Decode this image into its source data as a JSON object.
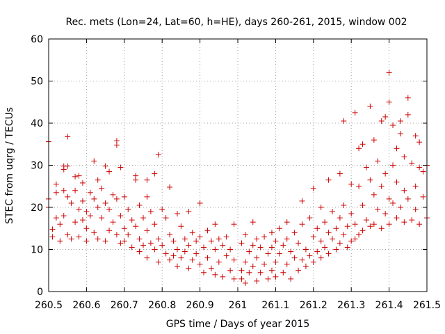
{
  "colors": {
    "series": "#cc0000",
    "grid": "#a0a0a0",
    "frame": "#000000"
  },
  "chart_data": {
    "type": "scatter",
    "title": "Rec. mets (Lon=24, Lat=60, h=HE), days 260-261, 2015, window 002",
    "xlabel": "GPS time / Days of year 2015",
    "ylabel": "STEC from uqrg / TECUs",
    "xlim": [
      260.5,
      261.5
    ],
    "ylim": [
      0,
      60
    ],
    "xticks": [
      "260.5",
      "260.6",
      "260.7",
      "260.8",
      "260.9",
      "261",
      "261.1",
      "261.2",
      "261.3",
      "261.4",
      "261.5"
    ],
    "xtick_values": [
      260.5,
      260.6,
      260.7,
      260.8,
      260.9,
      261.0,
      261.1,
      261.2,
      261.3,
      261.4,
      261.5
    ],
    "yticks": [
      "0",
      "10",
      "20",
      "30",
      "40",
      "50",
      "60"
    ],
    "ytick_values": [
      0,
      10,
      20,
      30,
      40,
      50,
      60
    ],
    "grid": true,
    "marker": "+",
    "series": [
      {
        "points": [
          [
            260.5,
            35.6
          ],
          [
            260.5,
            22.0
          ],
          [
            260.5,
            20.0
          ],
          [
            260.51,
            14.8
          ],
          [
            260.51,
            13.0
          ],
          [
            260.52,
            25.5
          ],
          [
            260.52,
            23.5
          ],
          [
            260.52,
            17.5
          ],
          [
            260.53,
            16.0
          ],
          [
            260.53,
            12.0
          ],
          [
            260.54,
            29.8
          ],
          [
            260.54,
            29.0
          ],
          [
            260.54,
            24.0
          ],
          [
            260.54,
            18.0
          ],
          [
            260.55,
            36.8
          ],
          [
            260.55,
            29.8
          ],
          [
            260.55,
            22.5
          ],
          [
            260.55,
            13.5
          ],
          [
            260.56,
            21.0
          ],
          [
            260.56,
            12.5
          ],
          [
            260.57,
            27.3
          ],
          [
            260.57,
            24.0
          ],
          [
            260.57,
            16.5
          ],
          [
            260.58,
            27.5
          ],
          [
            260.58,
            19.5
          ],
          [
            260.58,
            13.0
          ],
          [
            260.59,
            25.8
          ],
          [
            260.59,
            21.5
          ],
          [
            260.59,
            17.0
          ],
          [
            260.6,
            19.0
          ],
          [
            260.6,
            15.0
          ],
          [
            260.6,
            12.0
          ],
          [
            260.61,
            23.5
          ],
          [
            260.61,
            18.0
          ],
          [
            260.62,
            31.0
          ],
          [
            260.62,
            22.0
          ],
          [
            260.62,
            14.0
          ],
          [
            260.63,
            26.5
          ],
          [
            260.63,
            20.0
          ],
          [
            260.63,
            12.5
          ],
          [
            260.64,
            24.5
          ],
          [
            260.64,
            17.5
          ],
          [
            260.65,
            29.8
          ],
          [
            260.65,
            21.0
          ],
          [
            260.65,
            12.0
          ],
          [
            260.66,
            28.5
          ],
          [
            260.66,
            19.5
          ],
          [
            260.66,
            14.5
          ],
          [
            260.67,
            23.0
          ],
          [
            260.67,
            16.5
          ],
          [
            260.68,
            35.8
          ],
          [
            260.68,
            34.8
          ],
          [
            260.68,
            22.0
          ],
          [
            260.68,
            13.5
          ],
          [
            260.69,
            29.5
          ],
          [
            260.69,
            18.0
          ],
          [
            260.69,
            11.5
          ],
          [
            260.7,
            22.5
          ],
          [
            260.7,
            15.0
          ],
          [
            260.7,
            12.0
          ],
          [
            260.71,
            19.5
          ],
          [
            260.71,
            13.5
          ],
          [
            260.72,
            17.0
          ],
          [
            260.72,
            10.5
          ],
          [
            260.73,
            27.5
          ],
          [
            260.73,
            26.5
          ],
          [
            260.73,
            15.5
          ],
          [
            260.74,
            20.5
          ],
          [
            260.74,
            12.5
          ],
          [
            260.74,
            9.5
          ],
          [
            260.75,
            17.5
          ],
          [
            260.75,
            11.0
          ],
          [
            260.76,
            26.5
          ],
          [
            260.76,
            22.5
          ],
          [
            260.76,
            14.5
          ],
          [
            260.76,
            8.0
          ],
          [
            260.77,
            19.0
          ],
          [
            260.77,
            11.5
          ],
          [
            260.78,
            28.0
          ],
          [
            260.78,
            16.0
          ],
          [
            260.78,
            10.0
          ],
          [
            260.79,
            32.5
          ],
          [
            260.79,
            12.5
          ],
          [
            260.79,
            7.0
          ],
          [
            260.8,
            19.5
          ],
          [
            260.8,
            11.0
          ],
          [
            260.81,
            17.5
          ],
          [
            260.81,
            9.0
          ],
          [
            260.82,
            24.8
          ],
          [
            260.82,
            13.5
          ],
          [
            260.82,
            7.5
          ],
          [
            260.83,
            12.0
          ],
          [
            260.83,
            8.5
          ],
          [
            260.84,
            18.5
          ],
          [
            260.84,
            10.0
          ],
          [
            260.84,
            6.0
          ],
          [
            260.85,
            15.5
          ],
          [
            260.85,
            8.0
          ],
          [
            260.86,
            12.5
          ],
          [
            260.86,
            9.5
          ],
          [
            260.87,
            19.0
          ],
          [
            260.87,
            11.0
          ],
          [
            260.87,
            5.5
          ],
          [
            260.88,
            14.0
          ],
          [
            260.88,
            7.5
          ],
          [
            260.89,
            12.0
          ],
          [
            260.89,
            9.0
          ],
          [
            260.9,
            21.0
          ],
          [
            260.9,
            13.0
          ],
          [
            260.9,
            6.5
          ],
          [
            260.91,
            10.5
          ],
          [
            260.91,
            4.5
          ],
          [
            260.92,
            14.5
          ],
          [
            260.92,
            8.0
          ],
          [
            260.93,
            12.0
          ],
          [
            260.93,
            5.5
          ],
          [
            260.94,
            16.0
          ],
          [
            260.94,
            10.0
          ],
          [
            260.94,
            4.0
          ],
          [
            260.95,
            12.5
          ],
          [
            260.95,
            7.0
          ],
          [
            260.96,
            11.0
          ],
          [
            260.96,
            3.5
          ],
          [
            260.97,
            13.0
          ],
          [
            260.97,
            8.5
          ],
          [
            260.98,
            10.0
          ],
          [
            260.98,
            5.0
          ],
          [
            260.99,
            16.0
          ],
          [
            260.99,
            7.5
          ],
          [
            260.99,
            3.0
          ],
          [
            261.01,
            11.5
          ],
          [
            261.01,
            5.0
          ],
          [
            261.01,
            3.0
          ],
          [
            261.02,
            13.5
          ],
          [
            261.02,
            7.0
          ],
          [
            261.02,
            2.0
          ],
          [
            261.03,
            9.5
          ],
          [
            261.03,
            4.5
          ],
          [
            261.04,
            16.5
          ],
          [
            261.04,
            11.0
          ],
          [
            261.04,
            6.0
          ],
          [
            261.05,
            12.5
          ],
          [
            261.05,
            8.0
          ],
          [
            261.05,
            2.5
          ],
          [
            261.06,
            10.5
          ],
          [
            261.06,
            4.5
          ],
          [
            261.07,
            13.0
          ],
          [
            261.07,
            6.5
          ],
          [
            261.08,
            9.0
          ],
          [
            261.08,
            3.0
          ],
          [
            261.09,
            14.0
          ],
          [
            261.09,
            10.5
          ],
          [
            261.09,
            5.0
          ],
          [
            261.1,
            12.0
          ],
          [
            261.1,
            7.0
          ],
          [
            261.1,
            3.5
          ],
          [
            261.11,
            15.0
          ],
          [
            261.11,
            9.0
          ],
          [
            261.12,
            11.0
          ],
          [
            261.12,
            4.5
          ],
          [
            261.13,
            16.5
          ],
          [
            261.13,
            12.5
          ],
          [
            261.13,
            6.5
          ],
          [
            261.14,
            9.5
          ],
          [
            261.14,
            3.0
          ],
          [
            261.15,
            14.0
          ],
          [
            261.15,
            8.0
          ],
          [
            261.16,
            11.5
          ],
          [
            261.16,
            5.0
          ],
          [
            261.17,
            21.5
          ],
          [
            261.17,
            16.0
          ],
          [
            261.17,
            7.5
          ],
          [
            261.18,
            10.0
          ],
          [
            261.18,
            6.0
          ],
          [
            261.19,
            17.5
          ],
          [
            261.19,
            8.5
          ],
          [
            261.2,
            24.5
          ],
          [
            261.2,
            13.0
          ],
          [
            261.2,
            7.0
          ],
          [
            261.21,
            15.0
          ],
          [
            261.21,
            9.5
          ],
          [
            261.22,
            20.0
          ],
          [
            261.22,
            12.0
          ],
          [
            261.22,
            8.0
          ],
          [
            261.23,
            16.5
          ],
          [
            261.23,
            10.5
          ],
          [
            261.24,
            26.5
          ],
          [
            261.24,
            14.0
          ],
          [
            261.24,
            9.0
          ],
          [
            261.25,
            19.0
          ],
          [
            261.25,
            12.5
          ],
          [
            261.26,
            15.0
          ],
          [
            261.26,
            10.0
          ],
          [
            261.27,
            28.0
          ],
          [
            261.27,
            17.5
          ],
          [
            261.27,
            11.5
          ],
          [
            261.28,
            40.5
          ],
          [
            261.28,
            20.5
          ],
          [
            261.28,
            13.5
          ],
          [
            261.29,
            15.5
          ],
          [
            261.29,
            10.5
          ],
          [
            261.3,
            25.5
          ],
          [
            261.3,
            18.5
          ],
          [
            261.3,
            12.0
          ],
          [
            261.31,
            42.5
          ],
          [
            261.31,
            16.0
          ],
          [
            261.31,
            12.5
          ],
          [
            261.32,
            34.0
          ],
          [
            261.32,
            25.0
          ],
          [
            261.32,
            13.5
          ],
          [
            261.33,
            35.0
          ],
          [
            261.33,
            20.5
          ],
          [
            261.33,
            14.5
          ],
          [
            261.34,
            29.5
          ],
          [
            261.34,
            17.0
          ],
          [
            261.35,
            44.0
          ],
          [
            261.35,
            26.5
          ],
          [
            261.35,
            15.5
          ],
          [
            261.36,
            36.0
          ],
          [
            261.36,
            23.0
          ],
          [
            261.36,
            16.0
          ],
          [
            261.37,
            31.0
          ],
          [
            261.37,
            19.5
          ],
          [
            261.38,
            40.5
          ],
          [
            261.38,
            25.0
          ],
          [
            261.38,
            15.0
          ],
          [
            261.39,
            41.5
          ],
          [
            261.39,
            28.0
          ],
          [
            261.39,
            18.5
          ],
          [
            261.4,
            52.0
          ],
          [
            261.4,
            45.0
          ],
          [
            261.4,
            22.0
          ],
          [
            261.4,
            16.0
          ],
          [
            261.41,
            39.5
          ],
          [
            261.41,
            30.0
          ],
          [
            261.41,
            21.0
          ],
          [
            261.42,
            34.0
          ],
          [
            261.42,
            26.0
          ],
          [
            261.42,
            17.5
          ],
          [
            261.43,
            40.5
          ],
          [
            261.43,
            37.5
          ],
          [
            261.43,
            20.0
          ],
          [
            261.44,
            32.0
          ],
          [
            261.44,
            24.0
          ],
          [
            261.44,
            16.5
          ],
          [
            261.45,
            46.0
          ],
          [
            261.45,
            42.0
          ],
          [
            261.45,
            22.0
          ],
          [
            261.46,
            30.5
          ],
          [
            261.46,
            17.0
          ],
          [
            261.47,
            37.0
          ],
          [
            261.47,
            25.0
          ],
          [
            261.47,
            19.5
          ],
          [
            261.48,
            35.5
          ],
          [
            261.48,
            29.5
          ],
          [
            261.48,
            16.0
          ],
          [
            261.49,
            28.5
          ],
          [
            261.49,
            22.5
          ],
          [
            261.5,
            30.0
          ],
          [
            261.5,
            17.5
          ]
        ]
      }
    ]
  }
}
